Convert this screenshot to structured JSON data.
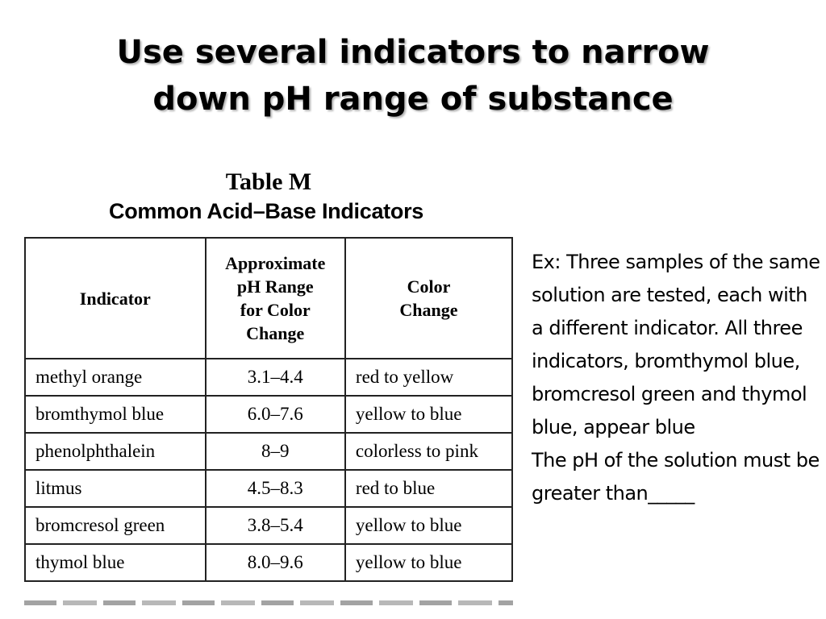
{
  "title": {
    "line1": "Use several indicators to narrow",
    "line2": "down pH range of substance"
  },
  "table": {
    "label": "Table M",
    "caption": "Common Acid–Base Indicators",
    "headers": {
      "indicator": "Indicator",
      "range_line1": "Approximate",
      "range_line2": "pH Range",
      "range_line3": "for Color",
      "range_line4": "Change",
      "color_line1": "Color",
      "color_line2": "Change"
    },
    "rows": [
      {
        "indicator": "methyl orange",
        "range": "3.1–4.4",
        "color": "red to yellow"
      },
      {
        "indicator": "bromthymol blue",
        "range": "6.0–7.6",
        "color": "yellow to blue"
      },
      {
        "indicator": "phenolphthalein",
        "range": "8–9",
        "color": "colorless to pink"
      },
      {
        "indicator": "litmus",
        "range": "4.5–8.3",
        "color": "red to blue"
      },
      {
        "indicator": "bromcresol green",
        "range": "3.8–5.4",
        "color": "yellow to blue"
      },
      {
        "indicator": "thymol blue",
        "range": "8.0–9.6",
        "color": "yellow to blue"
      }
    ]
  },
  "example": {
    "paragraph1": "Ex: Three samples of the same solution are tested, each with a different indicator. All three indicators, bromthymol blue, bromcresol green and thymol blue, appear blue",
    "paragraph2": "The pH of the solution must be greater than_____"
  }
}
